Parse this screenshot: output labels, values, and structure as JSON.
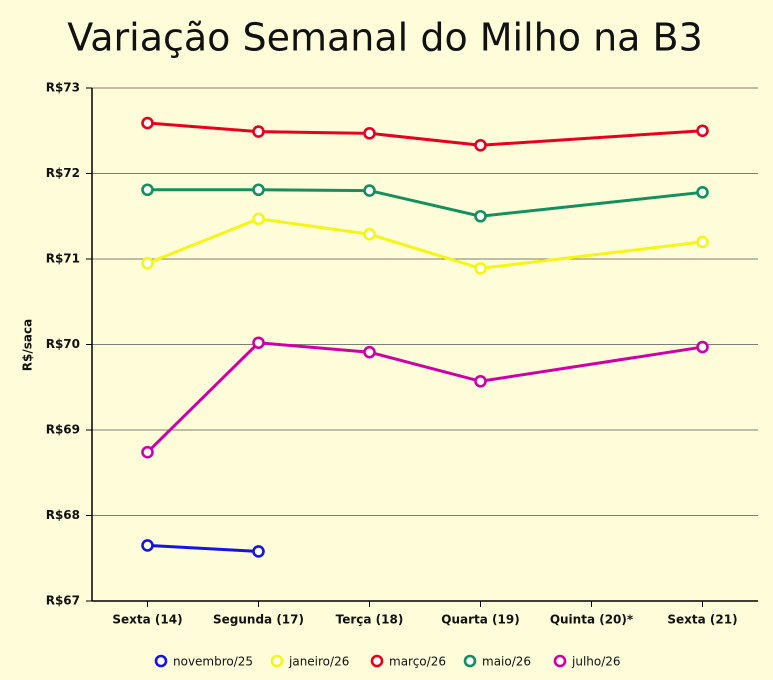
{
  "chart_data": {
    "type": "line",
    "title": "Variação Semanal do Milho na B3",
    "y_label": "R$/saca",
    "categories": [
      "Sexta (14)",
      "Segunda (17)",
      "Terça (18)",
      "Quarta (19)",
      "Quinta (20)*",
      "Sexta (21)"
    ],
    "series": [
      {
        "name": "novembro/25",
        "color": "#1414e6",
        "values": [
          67.65,
          67.58,
          null,
          null,
          null,
          null
        ]
      },
      {
        "name": "janeiro/26",
        "color": "#f5f516",
        "values": [
          70.95,
          71.47,
          71.29,
          70.89,
          null,
          71.2
        ]
      },
      {
        "name": "março/26",
        "color": "#e8001c",
        "values": [
          72.59,
          72.49,
          72.47,
          72.33,
          null,
          72.5
        ]
      },
      {
        "name": "maio/26",
        "color": "#12905e",
        "values": [
          71.81,
          71.81,
          71.8,
          71.5,
          null,
          71.78
        ]
      },
      {
        "name": "julho/26",
        "color": "#d000a8",
        "values": [
          68.74,
          70.02,
          69.91,
          69.57,
          null,
          69.97
        ]
      }
    ],
    "ylim": [
      67,
      73
    ],
    "yticks": [
      {
        "value": 67,
        "label": "R$67"
      },
      {
        "value": 68,
        "label": "R$68"
      },
      {
        "value": 69,
        "label": "R$69"
      },
      {
        "value": 70,
        "label": "R$70"
      },
      {
        "value": 71,
        "label": "R$71"
      },
      {
        "value": 72,
        "label": "R$72"
      },
      {
        "value": 73,
        "label": "R$73"
      }
    ],
    "grid": true,
    "connect_gaps": true,
    "legend": "bottom"
  }
}
